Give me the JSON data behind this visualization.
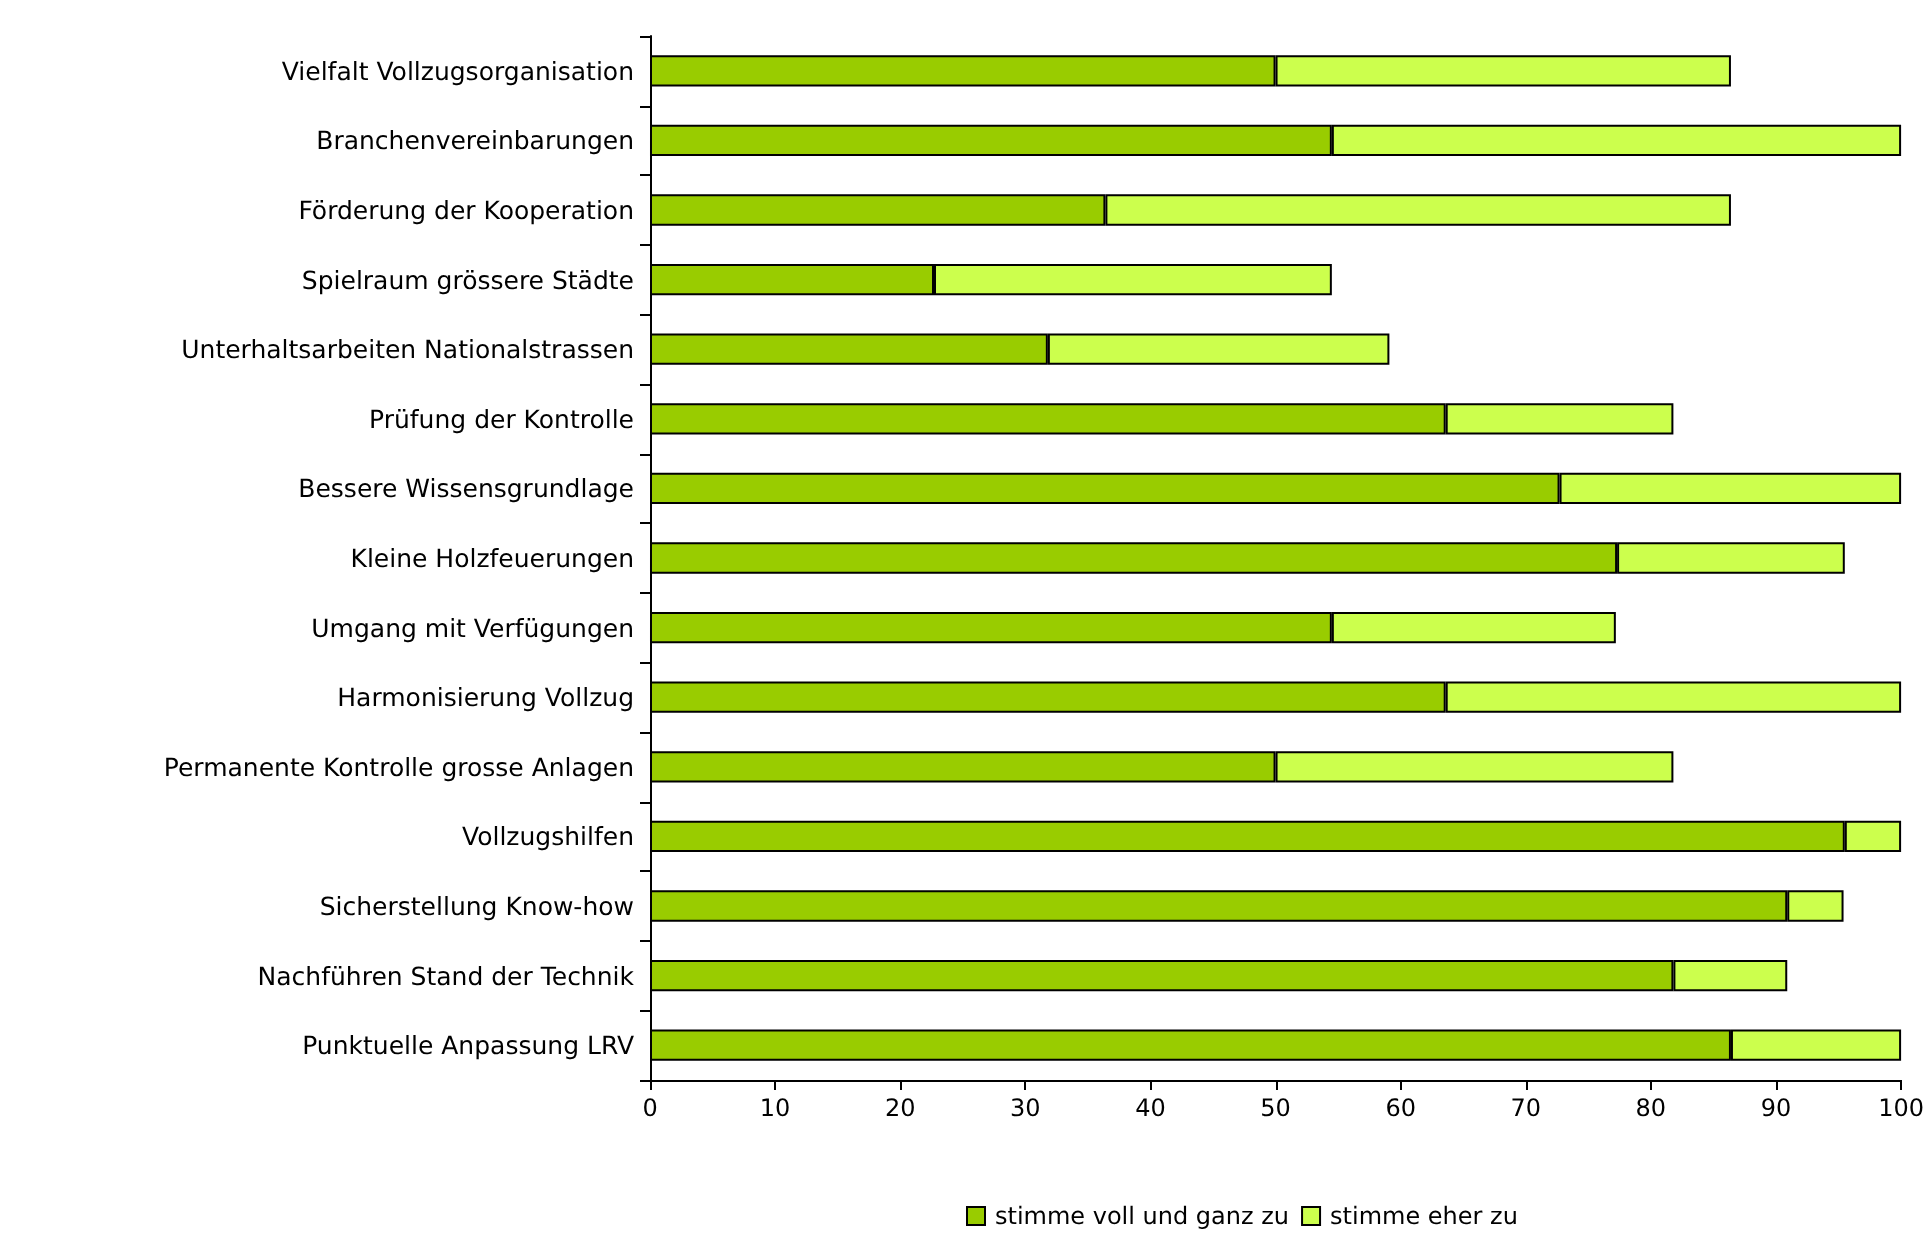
{
  "chart_data": {
    "type": "bar",
    "orientation": "horizontal",
    "stacked": true,
    "categories": [
      "Vielfalt Vollzugsorganisation",
      "Branchenvereinbarungen",
      "Förderung der Kooperation",
      "Spielraum grössere Städte",
      "Unterhaltsarbeiten Nationalstrassen",
      "Prüfung der Kontrolle",
      "Bessere Wissensgrundlage",
      "Kleine Holzfeuerungen",
      "Umgang mit Verfügungen",
      "Harmonisierung Vollzug",
      "Permanente Kontrolle grosse Anlagen",
      "Vollzugshilfen",
      "Sicherstellung Know-how",
      "Nachführen Stand der Technik",
      "Punktuelle Anpassung LRV"
    ],
    "series": [
      {
        "name": "stimme voll und ganz zu",
        "color": "#99cc00",
        "values": [
          50,
          54.5,
          36.4,
          22.7,
          31.8,
          63.6,
          72.7,
          77.3,
          54.5,
          63.6,
          50,
          95.5,
          90.9,
          81.8,
          86.4
        ]
      },
      {
        "name": "stimme eher zu",
        "color": "#ccff4d",
        "values": [
          36.4,
          45.5,
          50,
          31.8,
          27.3,
          18.2,
          27.3,
          18.2,
          22.7,
          36.4,
          31.8,
          4.5,
          4.5,
          9.1,
          13.6
        ]
      }
    ],
    "xlim": [
      0,
      100
    ],
    "xticks": [
      0,
      10,
      20,
      30,
      40,
      50,
      60,
      70,
      80,
      90,
      100
    ],
    "grid": false,
    "legend": "bottom"
  }
}
